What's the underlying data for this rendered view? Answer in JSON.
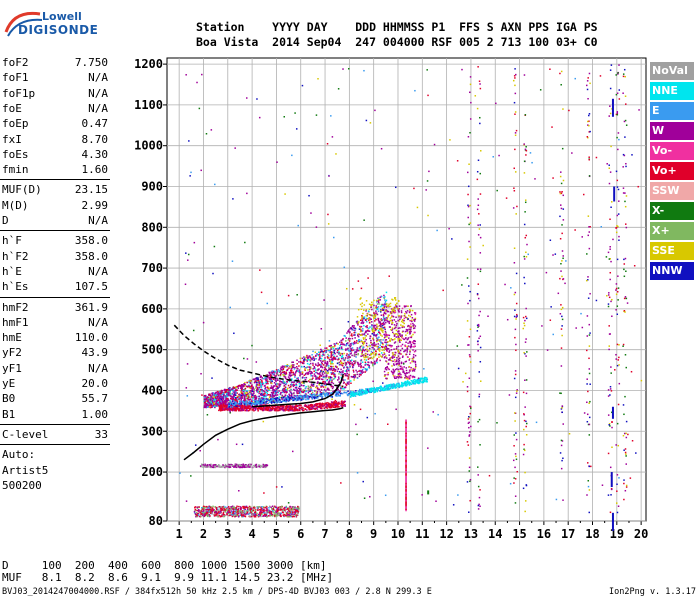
{
  "logo": {
    "line1": "Lowell",
    "line2": "DIGISONDE"
  },
  "header": {
    "line1": "Station    YYYY DAY    DDD HHMMSS P1  FFS S AXN PPS IGA PS",
    "line2": "Boa Vista  2014 Sep04  247 004000 RSF 005 2 713 100 03+ C0"
  },
  "params": [
    {
      "k": "foF2",
      "v": "7.750"
    },
    {
      "k": "foF1",
      "v": "N/A"
    },
    {
      "k": "foF1p",
      "v": "N/A"
    },
    {
      "k": "foE",
      "v": "N/A"
    },
    {
      "k": "foEp",
      "v": "0.47"
    },
    {
      "k": "fxI",
      "v": "8.70"
    },
    {
      "k": "foEs",
      "v": "4.30"
    },
    {
      "k": "fmin",
      "v": "1.60"
    },
    {
      "k": "MUF(D)",
      "v": "23.15"
    },
    {
      "k": "M(D)",
      "v": "2.99"
    },
    {
      "k": "D",
      "v": "N/A"
    },
    {
      "k": "h`F",
      "v": "358.0"
    },
    {
      "k": "h`F2",
      "v": "358.0"
    },
    {
      "k": "h`E",
      "v": "N/A"
    },
    {
      "k": "h`Es",
      "v": "107.5"
    },
    {
      "k": "hmF2",
      "v": "361.9"
    },
    {
      "k": "hmF1",
      "v": "N/A"
    },
    {
      "k": "hmE",
      "v": "110.0"
    },
    {
      "k": "yF2",
      "v": "43.9"
    },
    {
      "k": "yF1",
      "v": "N/A"
    },
    {
      "k": "yE",
      "v": "20.0"
    },
    {
      "k": "B0",
      "v": "55.7"
    },
    {
      "k": "B1",
      "v": "1.00"
    },
    {
      "k": "C-level",
      "v": "33"
    },
    {
      "k": "Auto:",
      "v": ""
    },
    {
      "k": "Artist5",
      "v": ""
    },
    {
      "k": "500200",
      "v": ""
    }
  ],
  "legend": [
    {
      "label": "NoVal",
      "bg": "#a0a0a0",
      "fg": "#ffffff"
    },
    {
      "label": "NNE",
      "bg": "#00e5ee",
      "fg": "#ffffff"
    },
    {
      "label": "E",
      "bg": "#3a9bf0",
      "fg": "#ffffff"
    },
    {
      "label": "W",
      "bg": "#a0009a",
      "fg": "#ffffff"
    },
    {
      "label": "Vo-",
      "bg": "#f030a0",
      "fg": "#ffffff"
    },
    {
      "label": "Vo+",
      "bg": "#e0002a",
      "fg": "#ffffff"
    },
    {
      "label": "SSW",
      "bg": "#f0a8a8",
      "fg": "#ffffff"
    },
    {
      "label": "X-",
      "bg": "#107a10",
      "fg": "#ffffff"
    },
    {
      "label": "X+",
      "bg": "#80b860",
      "fg": "#ffffff"
    },
    {
      "label": "SSE",
      "bg": "#d8c800",
      "fg": "#ffffff"
    },
    {
      "label": "NNW",
      "bg": "#1010c0",
      "fg": "#ffffff"
    }
  ],
  "bottom": {
    "line1": "D     100  200  400  600  800 1000 1500 3000 [km]",
    "line2": "MUF   8.1  8.2  8.6  9.1  9.9 11.1 14.5 23.2 [MHz]"
  },
  "footer": "BVJ03_2014247004000.RSF / 384fx512h 50 kHz 2.5 km / DPS-4D BVJ03 003 / 2.8 N 299.3 E",
  "version": "Ion2Png v. 1.3.17",
  "chart_data": {
    "type": "scatter",
    "x_ticks": [
      1,
      2,
      3,
      4,
      5,
      6,
      7,
      8,
      9,
      10,
      11,
      12,
      13,
      14,
      15,
      16,
      17,
      18,
      19,
      20
    ],
    "y_ticks": [
      80,
      200,
      300,
      400,
      500,
      600,
      700,
      800,
      900,
      1000,
      1100,
      1200
    ],
    "xlim": [
      0.5,
      20.2
    ],
    "ylim": [
      80,
      1215
    ],
    "xlabel": "",
    "ylabel": "",
    "grid": true,
    "trace_o_mode": {
      "color": "#000000",
      "x": [
        1.2,
        1.6,
        2.0,
        2.5,
        3.0,
        3.5,
        4.0,
        4.5,
        5.0,
        5.5,
        6.0,
        6.5,
        7.0,
        7.3,
        7.6,
        7.75
      ],
      "y": [
        230,
        248,
        268,
        290,
        305,
        318,
        326,
        332,
        337,
        341,
        345,
        348,
        351,
        352,
        355,
        358
      ]
    },
    "trace_bottomside": {
      "color": "#000000",
      "x": [
        4.0,
        4.5,
        5.0,
        5.5,
        6.0,
        6.5,
        7.0,
        7.3,
        7.5,
        7.65,
        7.75
      ],
      "y": [
        360,
        362,
        364,
        366,
        368,
        372,
        380,
        390,
        405,
        420,
        440
      ]
    },
    "trace_topside_dashed": {
      "color": "#000000",
      "x": [
        0.8,
        1.2,
        1.6,
        2.0,
        2.5,
        3.0,
        3.5,
        4.0,
        4.5,
        5.0,
        5.5,
        6.0,
        6.5,
        7.0,
        7.5,
        7.75
      ],
      "y": [
        560,
        535,
        515,
        497,
        478,
        462,
        450,
        443,
        436,
        430,
        426,
        423,
        420,
        416,
        412,
        410
      ]
    }
  }
}
